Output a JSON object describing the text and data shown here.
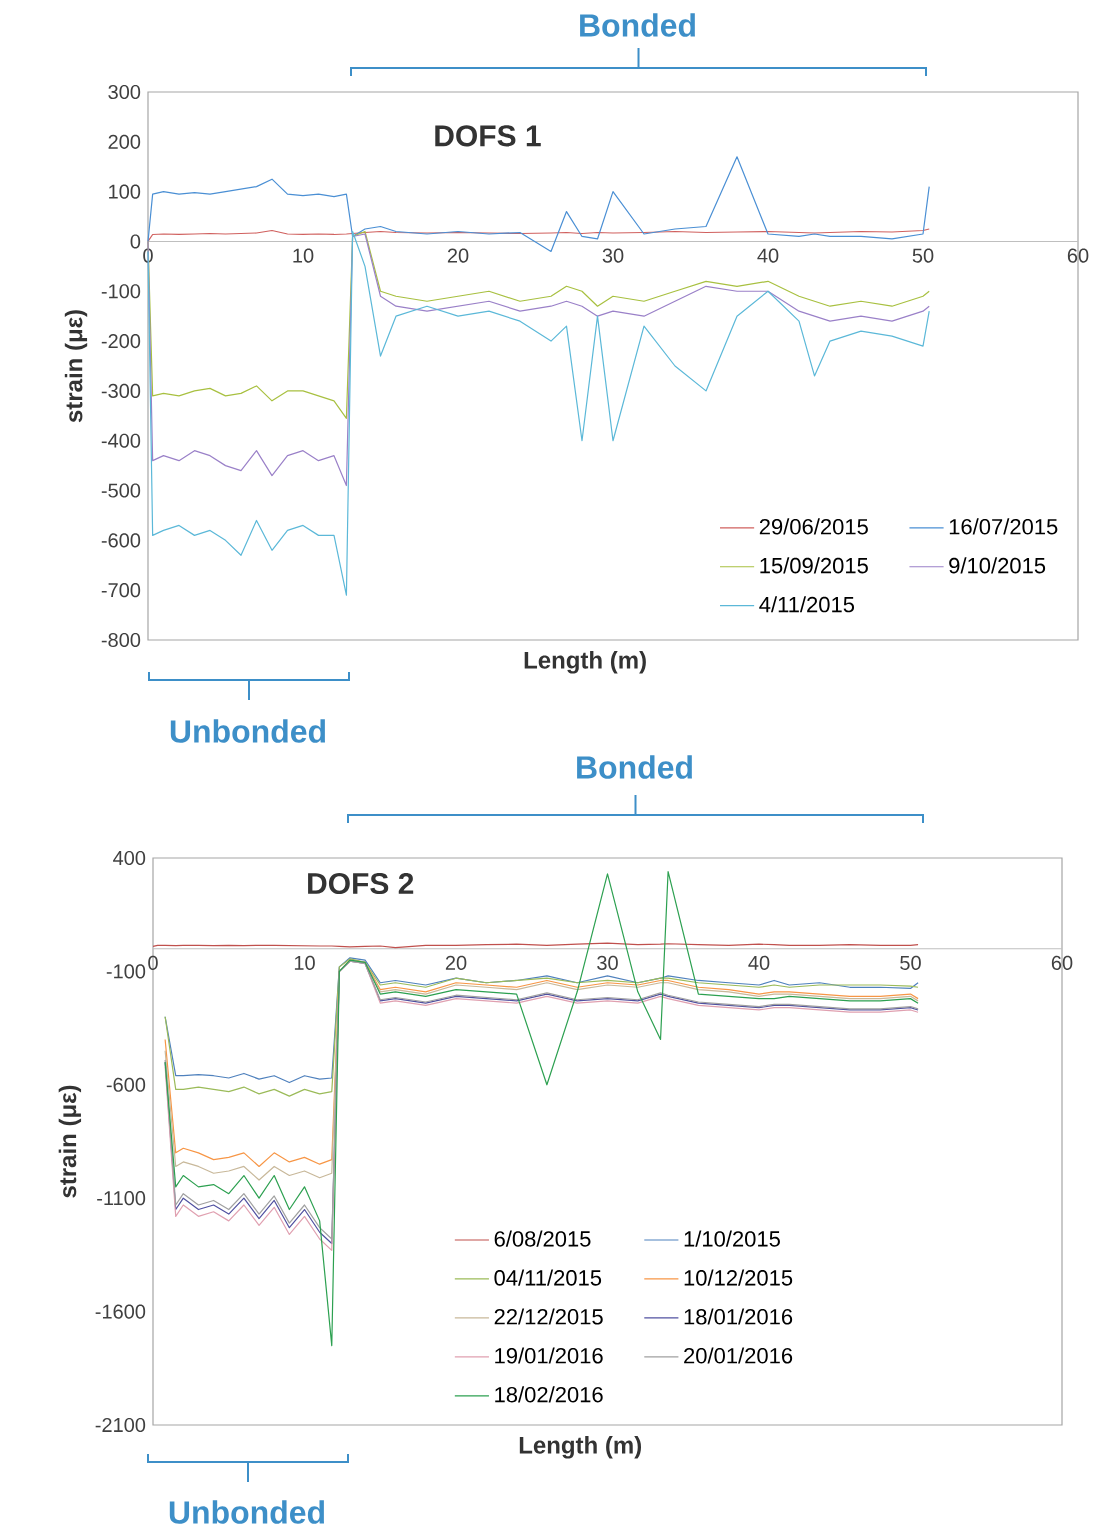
{
  "chart_data": [
    {
      "type": "line",
      "title": "DOFS 1",
      "xlabel": "Length (m)",
      "ylabel": "strain (με)",
      "xlim": [
        0,
        60
      ],
      "xticks": [
        0,
        10,
        20,
        30,
        40,
        50,
        60
      ],
      "ylim": [
        -800,
        300
      ],
      "yticks": [
        -800,
        -700,
        -600,
        -500,
        -400,
        -300,
        -200,
        -100,
        0,
        100,
        200,
        300
      ],
      "legend": "bottom right",
      "grid": false,
      "annotations": [
        "Bonded",
        "Unbonded"
      ],
      "x": [
        0,
        0.3,
        1,
        2,
        3,
        4,
        5,
        6,
        7,
        8,
        9,
        10,
        11,
        12,
        12.8,
        13.2,
        14,
        15,
        16,
        18,
        20,
        22,
        24,
        26,
        27,
        28,
        29,
        30,
        32,
        34,
        36,
        38,
        40,
        42,
        43,
        44,
        46,
        48,
        50,
        50.4
      ],
      "series": [
        {
          "name": "29/06/2015",
          "color": "#d0605e",
          "values": [
            0,
            14,
            15,
            14,
            15,
            16,
            15,
            16,
            17,
            22,
            15,
            14,
            15,
            14,
            15,
            16,
            18,
            20,
            18,
            17,
            18,
            17,
            16,
            17,
            18,
            16,
            18,
            17,
            18,
            20,
            18,
            19,
            20,
            18,
            17,
            18,
            20,
            19,
            22,
            25
          ]
        },
        {
          "name": "16/07/2015",
          "color": "#4a8fd4",
          "values": [
            0,
            95,
            100,
            95,
            98,
            95,
            100,
            105,
            110,
            125,
            95,
            92,
            95,
            90,
            95,
            10,
            25,
            30,
            20,
            15,
            20,
            15,
            18,
            -20,
            60,
            10,
            5,
            100,
            15,
            25,
            30,
            170,
            15,
            10,
            15,
            10,
            10,
            5,
            15,
            110
          ]
        },
        {
          "name": "15/09/2015",
          "color": "#a8c040",
          "values": [
            0,
            -310,
            -305,
            -310,
            -300,
            -295,
            -310,
            -305,
            -290,
            -320,
            -300,
            -300,
            -310,
            -320,
            -355,
            10,
            20,
            -100,
            -110,
            -120,
            -110,
            -100,
            -120,
            -110,
            -90,
            -100,
            -130,
            -110,
            -120,
            -100,
            -80,
            -90,
            -80,
            -110,
            -120,
            -130,
            -120,
            -130,
            -110,
            -100
          ]
        },
        {
          "name": "9/10/2015",
          "color": "#9a80c8",
          "values": [
            0,
            -440,
            -430,
            -440,
            -420,
            -430,
            -450,
            -460,
            -420,
            -470,
            -430,
            -420,
            -440,
            -430,
            -490,
            10,
            15,
            -110,
            -130,
            -140,
            -130,
            -120,
            -140,
            -130,
            -120,
            -130,
            -150,
            -140,
            -150,
            -120,
            -90,
            -100,
            -100,
            -140,
            -150,
            -160,
            -150,
            -160,
            -140,
            -130
          ]
        },
        {
          "name": "4/11/2015",
          "color": "#5bb8d8",
          "values": [
            -20,
            -590,
            -580,
            -570,
            -590,
            -580,
            -600,
            -630,
            -560,
            -620,
            -580,
            -570,
            -590,
            -590,
            -710,
            20,
            -50,
            -230,
            -150,
            -130,
            -150,
            -140,
            -160,
            -200,
            -170,
            -400,
            -150,
            -400,
            -170,
            -250,
            -300,
            -150,
            -100,
            -160,
            -270,
            -200,
            -180,
            -190,
            -210,
            -140
          ]
        }
      ]
    },
    {
      "type": "line",
      "title": "DOFS 2",
      "xlabel": "Length (m)",
      "ylabel": "strain (με)",
      "xlim": [
        0,
        60
      ],
      "xticks": [
        0,
        10,
        20,
        30,
        40,
        50,
        60
      ],
      "ylim": [
        -2100,
        400
      ],
      "yticks": [
        -2100,
        -1600,
        -1100,
        -600,
        -100,
        400
      ],
      "legend": "bottom",
      "grid": false,
      "annotations": [
        "Bonded",
        "Unbonded"
      ],
      "x": [
        0,
        0.3,
        0.8,
        1.5,
        2,
        3,
        4,
        5,
        6,
        7,
        8,
        9,
        10,
        11,
        11.8,
        12.3,
        13,
        14,
        15,
        16,
        18,
        20,
        22,
        24,
        26,
        28,
        30,
        32,
        33.5,
        34,
        36,
        38,
        40,
        41,
        42,
        44,
        46,
        48,
        50,
        50.5
      ],
      "series": [
        {
          "name": "6/08/2015",
          "color": "#c0504d",
          "values": [
            10,
            15,
            15,
            14,
            15,
            15,
            14,
            15,
            14,
            15,
            15,
            14,
            13,
            12,
            12,
            10,
            8,
            10,
            12,
            5,
            15,
            15,
            18,
            20,
            15,
            20,
            25,
            18,
            20,
            22,
            18,
            15,
            20,
            18,
            15,
            15,
            18,
            15,
            15,
            18
          ]
        },
        {
          "name": "1/10/2015",
          "color": "#4f81bd",
          "values": [
            null,
            null,
            -300,
            -560,
            -560,
            -555,
            -560,
            -570,
            -550,
            -575,
            -560,
            -590,
            -560,
            -575,
            -570,
            -80,
            -40,
            -50,
            -150,
            -140,
            -160,
            -130,
            -150,
            -140,
            -120,
            -150,
            -120,
            -150,
            -130,
            -120,
            -140,
            -150,
            -160,
            -140,
            -160,
            -150,
            -170,
            -170,
            -175,
            -150
          ]
        },
        {
          "name": "04/11/2015",
          "color": "#9bbb59",
          "values": [
            null,
            null,
            -300,
            -620,
            -620,
            -610,
            -620,
            -630,
            -610,
            -640,
            -620,
            -650,
            -620,
            -640,
            -630,
            -80,
            -45,
            -60,
            -160,
            -150,
            -170,
            -130,
            -150,
            -140,
            -130,
            -150,
            -140,
            -150,
            -130,
            -130,
            -150,
            -160,
            -170,
            -160,
            -170,
            -160,
            -160,
            -160,
            -165,
            -170
          ]
        },
        {
          "name": "10/12/2015",
          "color": "#f79646",
          "values": [
            null,
            null,
            -400,
            -900,
            -880,
            -900,
            -930,
            -920,
            -900,
            -960,
            -900,
            -940,
            -920,
            -950,
            -930,
            -100,
            -50,
            -60,
            -180,
            -170,
            -190,
            -150,
            -160,
            -170,
            -140,
            -170,
            -150,
            -160,
            -140,
            -140,
            -170,
            -180,
            -200,
            -190,
            -190,
            -200,
            -210,
            -210,
            -200,
            -220
          ]
        },
        {
          "name": "22/12/2015",
          "color": "#c8b89a",
          "values": [
            null,
            null,
            -450,
            -960,
            -940,
            -960,
            -990,
            -980,
            -960,
            -1020,
            -960,
            -1000,
            -980,
            -1010,
            -990,
            -100,
            -50,
            -60,
            -190,
            -180,
            -200,
            -160,
            -170,
            -180,
            -150,
            -180,
            -160,
            -170,
            -150,
            -150,
            -180,
            -190,
            -210,
            -200,
            -200,
            -210,
            -220,
            -220,
            -210,
            -230
          ]
        },
        {
          "name": "18/01/2016",
          "color": "#5050a0",
          "values": [
            null,
            null,
            -500,
            -1150,
            -1100,
            -1150,
            -1130,
            -1170,
            -1100,
            -1190,
            -1110,
            -1230,
            -1150,
            -1250,
            -1300,
            -100,
            -55,
            -65,
            -230,
            -220,
            -240,
            -210,
            -220,
            -230,
            -200,
            -230,
            -220,
            -230,
            -200,
            -210,
            -240,
            -250,
            -260,
            -250,
            -250,
            -260,
            -270,
            -270,
            -260,
            -270
          ]
        },
        {
          "name": "19/01/2016",
          "color": "#e0a0b0",
          "values": [
            null,
            null,
            -520,
            -1180,
            -1130,
            -1180,
            -1160,
            -1200,
            -1130,
            -1220,
            -1140,
            -1260,
            -1180,
            -1280,
            -1330,
            -100,
            -55,
            -65,
            -240,
            -230,
            -250,
            -220,
            -230,
            -240,
            -210,
            -240,
            -230,
            -240,
            -210,
            -220,
            -250,
            -260,
            -270,
            -260,
            -260,
            -270,
            -280,
            -280,
            -270,
            -280
          ]
        },
        {
          "name": "20/01/2016",
          "color": "#a0a0a0",
          "values": [
            null,
            null,
            -490,
            -1130,
            -1080,
            -1130,
            -1110,
            -1150,
            -1080,
            -1170,
            -1090,
            -1210,
            -1130,
            -1230,
            -1280,
            -100,
            -55,
            -65,
            -225,
            -215,
            -235,
            -205,
            -215,
            -225,
            -195,
            -225,
            -215,
            -225,
            -195,
            -205,
            -235,
            -245,
            -255,
            -245,
            -245,
            -255,
            -265,
            -265,
            -255,
            -265
          ]
        },
        {
          "name": "18/02/2016",
          "color": "#2ca050",
          "values": [
            null,
            null,
            -500,
            -1050,
            -1000,
            -1050,
            -1040,
            -1080,
            -1000,
            -1100,
            -1000,
            -1150,
            -1050,
            -1200,
            -1750,
            -100,
            -50,
            -60,
            -200,
            -190,
            -210,
            -180,
            -190,
            -200,
            -600,
            -190,
            330,
            -190,
            -400,
            340,
            -200,
            -210,
            -220,
            -220,
            -210,
            -220,
            -230,
            -230,
            -220,
            -240
          ]
        }
      ]
    }
  ]
}
